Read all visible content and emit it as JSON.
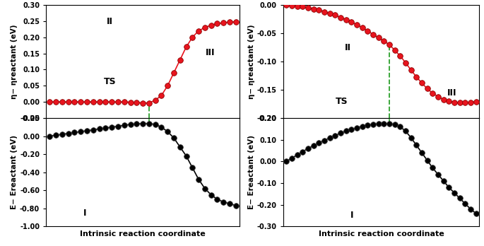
{
  "chart_data": [
    {
      "type": "line",
      "ylabel": "η− ηreactant (eV)",
      "color": "#e8141e",
      "marker": "o",
      "line_style": "solid",
      "tick_labels": "y",
      "annotations": [
        "II",
        "III",
        "TS"
      ],
      "transition_state_x": 16,
      "xlim": [
        -0.6,
        30.6
      ],
      "x": [
        0,
        1,
        2,
        3,
        4,
        5,
        6,
        7,
        8,
        9,
        10,
        11,
        12,
        13,
        14,
        15,
        16,
        17,
        18,
        19,
        20,
        21,
        22,
        23,
        24,
        25,
        26,
        27,
        28,
        29,
        30
      ],
      "values": [
        0,
        0,
        0,
        0,
        0,
        0,
        0,
        0,
        0,
        0,
        0,
        0,
        0,
        -0.001,
        -0.002,
        -0.003,
        -0.003,
        0.005,
        0.02,
        0.05,
        0.09,
        0.13,
        0.17,
        0.2,
        0.22,
        0.23,
        0.237,
        0.242,
        0.245,
        0.247,
        0.248
      ],
      "ylim": [
        -0.05,
        0.3
      ],
      "yticks": [
        {
          "value": -0.05,
          "label": "-0.05"
        },
        {
          "value": 0,
          "label": "0.00"
        },
        {
          "value": 0.05,
          "label": "0.05"
        },
        {
          "value": 0.1,
          "label": "0.10"
        },
        {
          "value": 0.15,
          "label": "0.15"
        },
        {
          "value": 0.2,
          "label": "0.20"
        },
        {
          "value": 0.25,
          "label": "0.25"
        },
        {
          "value": 0.3,
          "label": "0.30"
        }
      ]
    },
    {
      "type": "line",
      "ylabel": "E− Ereactant (eV)",
      "xlabel": "Intrinsic reaction coordinate",
      "color": "#000000",
      "marker": "o",
      "line_style": "solid",
      "tick_labels": "y",
      "annotations": [
        "I"
      ],
      "transition_state_x": 16,
      "xlim": [
        -0.6,
        30.6
      ],
      "x": [
        0,
        1,
        2,
        3,
        4,
        5,
        6,
        7,
        8,
        9,
        10,
        11,
        12,
        13,
        14,
        15,
        16,
        17,
        18,
        19,
        20,
        21,
        22,
        23,
        24,
        25,
        26,
        27,
        28,
        29,
        30
      ],
      "values": [
        0,
        0.01,
        0.02,
        0.03,
        0.04,
        0.05,
        0.06,
        0.07,
        0.08,
        0.09,
        0.1,
        0.11,
        0.12,
        0.13,
        0.135,
        0.14,
        0.14,
        0.13,
        0.1,
        0.05,
        -0.02,
        -0.12,
        -0.22,
        -0.35,
        -0.48,
        -0.58,
        -0.65,
        -0.7,
        -0.73,
        -0.75,
        -0.77
      ],
      "ylim": [
        -1.0,
        0.2
      ],
      "yticks": [
        {
          "value": -1.0,
          "label": "-1.00"
        },
        {
          "value": -0.8,
          "label": "-0.80"
        },
        {
          "value": -0.6,
          "label": "-0.60"
        },
        {
          "value": -0.4,
          "label": "-0.40"
        },
        {
          "value": -0.2,
          "label": "-0.20"
        },
        {
          "value": 0,
          "label": "0.00"
        },
        {
          "value": 0.2,
          "label": "0.20"
        }
      ]
    },
    {
      "type": "line",
      "ylabel": "η− ηreactant (eV)",
      "color": "#e8141e",
      "marker": "o",
      "line_style": "solid",
      "tick_labels": "y",
      "annotations": [
        "II",
        "III",
        "TS"
      ],
      "transition_state_x": 19,
      "xlim": [
        -0.6,
        35.6
      ],
      "x": [
        0,
        1,
        2,
        3,
        4,
        5,
        6,
        7,
        8,
        9,
        10,
        11,
        12,
        13,
        14,
        15,
        16,
        17,
        18,
        19,
        20,
        21,
        22,
        23,
        24,
        25,
        26,
        27,
        28,
        29,
        30,
        31,
        32,
        33,
        34,
        35
      ],
      "values": [
        0,
        -0.001,
        -0.002,
        -0.003,
        -0.005,
        -0.007,
        -0.009,
        -0.012,
        -0.015,
        -0.018,
        -0.022,
        -0.026,
        -0.03,
        -0.035,
        -0.04,
        -0.046,
        -0.052,
        -0.058,
        -0.064,
        -0.07,
        -0.08,
        -0.09,
        -0.102,
        -0.115,
        -0.127,
        -0.138,
        -0.148,
        -0.156,
        -0.162,
        -0.167,
        -0.17,
        -0.172,
        -0.173,
        -0.173,
        -0.172,
        -0.171
      ],
      "ylim": [
        -0.2,
        0.0
      ],
      "yticks": [
        {
          "value": -0.2,
          "label": "-0.20"
        },
        {
          "value": -0.15,
          "label": "-0.15"
        },
        {
          "value": -0.1,
          "label": "-0.10"
        },
        {
          "value": -0.05,
          "label": "-0.05"
        },
        {
          "value": 0,
          "label": "0.00"
        }
      ]
    },
    {
      "type": "line",
      "ylabel": "E− Ereactant (eV)",
      "xlabel": "Intrinsic reaction coordinate",
      "color": "#000000",
      "marker": "o",
      "line_style": "solid",
      "tick_labels": "y",
      "annotations": [
        "I"
      ],
      "transition_state_x": 19,
      "xlim": [
        -0.6,
        35.6
      ],
      "x": [
        0,
        1,
        2,
        3,
        4,
        5,
        6,
        7,
        8,
        9,
        10,
        11,
        12,
        13,
        14,
        15,
        16,
        17,
        18,
        19,
        20,
        21,
        22,
        23,
        24,
        25,
        26,
        27,
        28,
        29,
        30,
        31,
        32,
        33,
        34,
        35
      ],
      "values": [
        0,
        0.015,
        0.03,
        0.045,
        0.06,
        0.072,
        0.085,
        0.097,
        0.108,
        0.12,
        0.13,
        0.14,
        0.148,
        0.155,
        0.162,
        0.167,
        0.171,
        0.174,
        0.175,
        0.175,
        0.17,
        0.16,
        0.14,
        0.11,
        0.075,
        0.04,
        0.005,
        -0.03,
        -0.06,
        -0.09,
        -0.12,
        -0.145,
        -0.17,
        -0.195,
        -0.22,
        -0.24
      ],
      "ylim": [
        -0.3,
        0.2
      ],
      "yticks": [
        {
          "value": -0.3,
          "label": "-0.30"
        },
        {
          "value": -0.2,
          "label": "-0.20"
        },
        {
          "value": -0.1,
          "label": "-0.10"
        },
        {
          "value": 0,
          "label": "0.00"
        },
        {
          "value": 0.1,
          "label": "0.10"
        },
        {
          "value": 0.2,
          "label": "0.20"
        }
      ]
    }
  ]
}
